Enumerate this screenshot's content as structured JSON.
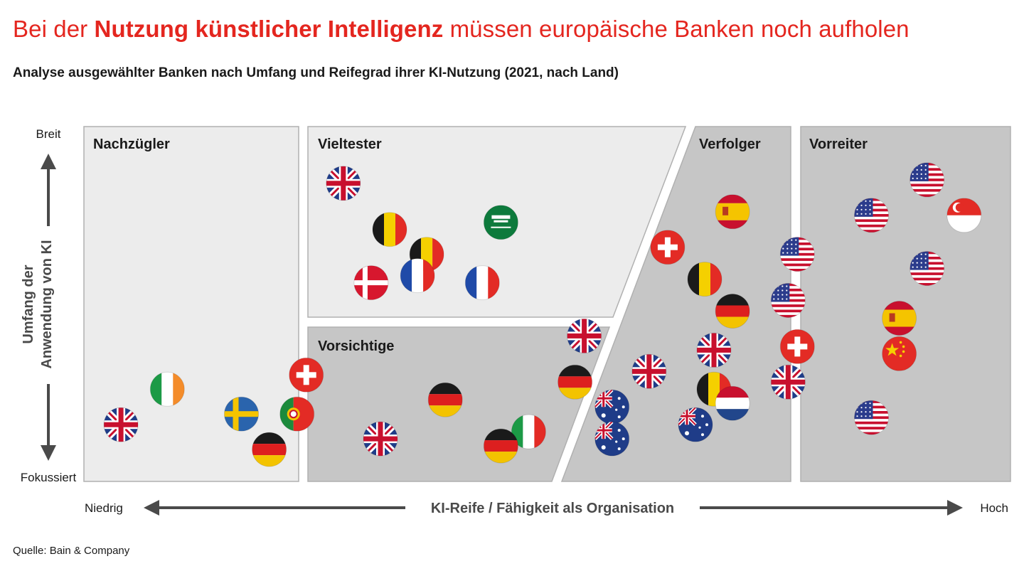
{
  "header": {
    "title_pre": "Bei der ",
    "title_bold": "Nutzung künstlicher Intelligenz",
    "title_post": " müssen europäische Banken noch aufholen",
    "subtitle": "Analyse ausgewählter Banken nach Umfang und Reifegrad ihrer KI-Nutzung (2021, nach Land)"
  },
  "source": "Quelle: Bain & Company",
  "chart_data": {
    "type": "scatter",
    "x_axis": {
      "label": "KI-Reife / Fähigkeit als Organisation",
      "low": "Niedrig",
      "high": "Hoch",
      "range": [
        0,
        100
      ]
    },
    "y_axis": {
      "label_line1": "Umfang der",
      "label_line2": "Anwendung von KI",
      "low": "Fokussiert",
      "high": "Breit",
      "range": [
        0,
        100
      ]
    },
    "zones": [
      "Nachzügler",
      "Vieltester",
      "Vorsichtige",
      "Verfolger",
      "Vorreiter"
    ],
    "points": [
      {
        "zone": "Nachzügler",
        "country": "UK",
        "x": 4,
        "y": 16
      },
      {
        "zone": "Nachzügler",
        "country": "Irland",
        "x": 9,
        "y": 26
      },
      {
        "zone": "Nachzügler",
        "country": "Schweden",
        "x": 17,
        "y": 19
      },
      {
        "zone": "Nachzügler",
        "country": "Deutschland",
        "x": 20,
        "y": 9
      },
      {
        "zone": "Vieltester",
        "country": "UK",
        "x": 28,
        "y": 84
      },
      {
        "zone": "Vieltester",
        "country": "Belgien",
        "x": 33,
        "y": 71
      },
      {
        "zone": "Vieltester",
        "country": "Saudi-Arabien",
        "x": 45,
        "y": 73
      },
      {
        "zone": "Vieltester",
        "country": "Belgien",
        "x": 37,
        "y": 64
      },
      {
        "zone": "Vieltester",
        "country": "Dänemark",
        "x": 31,
        "y": 56
      },
      {
        "zone": "Vieltester",
        "country": "Frankreich",
        "x": 36,
        "y": 58
      },
      {
        "zone": "Vieltester",
        "country": "Frankreich",
        "x": 43,
        "y": 56
      },
      {
        "zone": "Vorsichtige",
        "country": "Schweiz",
        "x": 24,
        "y": 30
      },
      {
        "zone": "Vorsichtige",
        "country": "Portugal",
        "x": 23,
        "y": 19
      },
      {
        "zone": "Vorsichtige",
        "country": "UK",
        "x": 54,
        "y": 41
      },
      {
        "zone": "Vorsichtige",
        "country": "Deutschland",
        "x": 39,
        "y": 23
      },
      {
        "zone": "Vorsichtige",
        "country": "Deutschland",
        "x": 53,
        "y": 28
      },
      {
        "zone": "Vorsichtige",
        "country": "UK",
        "x": 32,
        "y": 12
      },
      {
        "zone": "Vorsichtige",
        "country": "Italien",
        "x": 48,
        "y": 14
      },
      {
        "zone": "Vorsichtige",
        "country": "Deutschland",
        "x": 45,
        "y": 10
      },
      {
        "zone": "Verfolger",
        "country": "Spanien",
        "x": 70,
        "y": 76
      },
      {
        "zone": "Verfolger",
        "country": "Schweiz",
        "x": 63,
        "y": 66
      },
      {
        "zone": "Verfolger",
        "country": "Belgien",
        "x": 67,
        "y": 57
      },
      {
        "zone": "Verfolger",
        "country": "Deutschland",
        "x": 70,
        "y": 48
      },
      {
        "zone": "Verfolger",
        "country": "UK",
        "x": 68,
        "y": 37
      },
      {
        "zone": "Verfolger",
        "country": "UK",
        "x": 61,
        "y": 31
      },
      {
        "zone": "Verfolger",
        "country": "Belgien",
        "x": 68,
        "y": 26
      },
      {
        "zone": "Verfolger",
        "country": "Niederlande",
        "x": 70,
        "y": 22
      },
      {
        "zone": "Verfolger",
        "country": "Australien",
        "x": 57,
        "y": 21
      },
      {
        "zone": "Verfolger",
        "country": "Australien",
        "x": 57,
        "y": 12
      },
      {
        "zone": "Verfolger",
        "country": "Australien",
        "x": 66,
        "y": 16
      },
      {
        "zone": "Verfolger",
        "country": "USA",
        "x": 77,
        "y": 64
      },
      {
        "zone": "Verfolger",
        "country": "USA",
        "x": 76,
        "y": 51
      },
      {
        "zone": "Verfolger",
        "country": "Schweiz",
        "x": 77,
        "y": 38
      },
      {
        "zone": "Verfolger",
        "country": "UK",
        "x": 76,
        "y": 28
      },
      {
        "zone": "Vorreiter",
        "country": "USA",
        "x": 91,
        "y": 85
      },
      {
        "zone": "Vorreiter",
        "country": "Singapur",
        "x": 95,
        "y": 75
      },
      {
        "zone": "Vorreiter",
        "country": "USA",
        "x": 85,
        "y": 75
      },
      {
        "zone": "Vorreiter",
        "country": "USA",
        "x": 91,
        "y": 60
      },
      {
        "zone": "Vorreiter",
        "country": "Spanien",
        "x": 88,
        "y": 46
      },
      {
        "zone": "Vorreiter",
        "country": "China",
        "x": 88,
        "y": 36
      },
      {
        "zone": "Vorreiter",
        "country": "USA",
        "x": 85,
        "y": 18
      }
    ]
  },
  "colors": {
    "title_red": "#e4261f",
    "zone_light": "#ececec",
    "zone_dark": "#c6c6c6",
    "axis_arrow": "#4a4a4a"
  }
}
